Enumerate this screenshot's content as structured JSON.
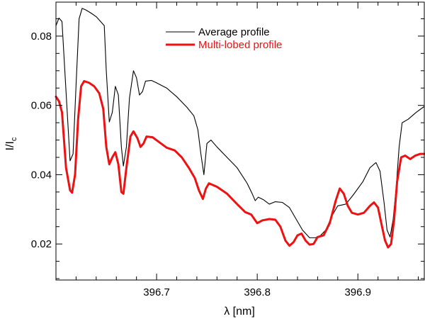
{
  "chart_data": {
    "type": "line",
    "title": "",
    "xlabel": "λ [nm]",
    "ylabel": {
      "main": "I/I",
      "subscript": "c"
    },
    "xlim": [
      396.6,
      396.966
    ],
    "ylim": [
      0.0096,
      0.0898
    ],
    "x_ticks": [
      {
        "value": 396.7,
        "label": "396.7"
      },
      {
        "value": 396.8,
        "label": "396.8"
      },
      {
        "value": 396.9,
        "label": "396.9"
      }
    ],
    "y_ticks": [
      {
        "value": 0.02,
        "label": "0.02"
      },
      {
        "value": 0.04,
        "label": "0.04"
      },
      {
        "value": 0.06,
        "label": "0.06"
      },
      {
        "value": 0.08,
        "label": "0.08"
      }
    ],
    "grid": false,
    "legend_position": "top-center",
    "series": [
      {
        "name": "Average profile",
        "color": "#000000",
        "stroke": "thin",
        "points": [
          [
            396.6,
            0.083
          ],
          [
            396.603,
            0.0852
          ],
          [
            396.606,
            0.0842
          ],
          [
            396.61,
            0.064
          ],
          [
            396.614,
            0.044
          ],
          [
            396.617,
            0.046
          ],
          [
            396.62,
            0.066
          ],
          [
            396.623,
            0.085
          ],
          [
            396.626,
            0.088
          ],
          [
            396.63,
            0.0875
          ],
          [
            396.635,
            0.0866
          ],
          [
            396.64,
            0.0856
          ],
          [
            396.645,
            0.084
          ],
          [
            396.648,
            0.083
          ],
          [
            396.65,
            0.07
          ],
          [
            396.653,
            0.0552
          ],
          [
            396.656,
            0.058
          ],
          [
            396.659,
            0.0655
          ],
          [
            396.662,
            0.063
          ],
          [
            396.665,
            0.048
          ],
          [
            396.667,
            0.0425
          ],
          [
            396.67,
            0.048
          ],
          [
            396.673,
            0.062
          ],
          [
            396.677,
            0.07
          ],
          [
            396.68,
            0.068
          ],
          [
            396.683,
            0.063
          ],
          [
            396.686,
            0.064
          ],
          [
            396.689,
            0.067
          ],
          [
            396.695,
            0.0672
          ],
          [
            396.7,
            0.0665
          ],
          [
            396.71,
            0.065
          ],
          [
            396.72,
            0.0625
          ],
          [
            396.73,
            0.0595
          ],
          [
            396.737,
            0.057
          ],
          [
            396.741,
            0.053
          ],
          [
            396.744,
            0.046
          ],
          [
            396.747,
            0.04
          ],
          [
            396.75,
            0.049
          ],
          [
            396.754,
            0.05
          ],
          [
            396.76,
            0.048
          ],
          [
            396.77,
            0.045
          ],
          [
            396.78,
            0.042
          ],
          [
            396.79,
            0.0375
          ],
          [
            396.795,
            0.0345
          ],
          [
            396.798,
            0.0325
          ],
          [
            396.801,
            0.0335
          ],
          [
            396.806,
            0.0328
          ],
          [
            396.812,
            0.0315
          ],
          [
            396.818,
            0.0322
          ],
          [
            396.825,
            0.032
          ],
          [
            396.832,
            0.0305
          ],
          [
            396.838,
            0.0275
          ],
          [
            396.845,
            0.024
          ],
          [
            396.852,
            0.0218
          ],
          [
            396.858,
            0.0218
          ],
          [
            396.863,
            0.0225
          ],
          [
            396.868,
            0.024
          ],
          [
            396.875,
            0.0285
          ],
          [
            396.88,
            0.031
          ],
          [
            396.888,
            0.0315
          ],
          [
            396.895,
            0.034
          ],
          [
            396.905,
            0.038
          ],
          [
            396.912,
            0.042
          ],
          [
            396.918,
            0.0435
          ],
          [
            396.922,
            0.041
          ],
          [
            396.926,
            0.032
          ],
          [
            396.929,
            0.024
          ],
          [
            396.932,
            0.022
          ],
          [
            396.935,
            0.027
          ],
          [
            396.938,
            0.036
          ],
          [
            396.941,
            0.048
          ],
          [
            396.944,
            0.055
          ],
          [
            396.95,
            0.056
          ],
          [
            396.958,
            0.058
          ],
          [
            396.966,
            0.0597
          ]
        ]
      },
      {
        "name": "Multi-lobed profile",
        "color": "#ee1111",
        "stroke": "thick",
        "points": [
          [
            396.6,
            0.0625
          ],
          [
            396.603,
            0.0612
          ],
          [
            396.606,
            0.058
          ],
          [
            396.61,
            0.042
          ],
          [
            396.614,
            0.0355
          ],
          [
            396.616,
            0.0348
          ],
          [
            396.619,
            0.04
          ],
          [
            396.622,
            0.056
          ],
          [
            396.625,
            0.0655
          ],
          [
            396.628,
            0.067
          ],
          [
            396.633,
            0.0665
          ],
          [
            396.638,
            0.0655
          ],
          [
            396.643,
            0.0635
          ],
          [
            396.647,
            0.059
          ],
          [
            396.65,
            0.048
          ],
          [
            396.653,
            0.043
          ],
          [
            396.656,
            0.045
          ],
          [
            396.659,
            0.0465
          ],
          [
            396.662,
            0.043
          ],
          [
            396.665,
            0.035
          ],
          [
            396.667,
            0.0345
          ],
          [
            396.67,
            0.042
          ],
          [
            396.674,
            0.051
          ],
          [
            396.677,
            0.0525
          ],
          [
            396.681,
            0.0505
          ],
          [
            396.684,
            0.048
          ],
          [
            396.687,
            0.049
          ],
          [
            396.69,
            0.051
          ],
          [
            396.696,
            0.0508
          ],
          [
            396.702,
            0.0495
          ],
          [
            396.71,
            0.0478
          ],
          [
            396.718,
            0.047
          ],
          [
            396.725,
            0.045
          ],
          [
            396.732,
            0.042
          ],
          [
            396.738,
            0.039
          ],
          [
            396.742,
            0.0355
          ],
          [
            396.746,
            0.033
          ],
          [
            396.749,
            0.036
          ],
          [
            396.752,
            0.0375
          ],
          [
            396.76,
            0.0365
          ],
          [
            396.77,
            0.0345
          ],
          [
            396.78,
            0.0315
          ],
          [
            396.788,
            0.0292
          ],
          [
            396.794,
            0.0285
          ],
          [
            396.8,
            0.026
          ],
          [
            396.805,
            0.0268
          ],
          [
            396.812,
            0.0272
          ],
          [
            396.818,
            0.027
          ],
          [
            396.823,
            0.025
          ],
          [
            396.828,
            0.021
          ],
          [
            396.832,
            0.0195
          ],
          [
            396.836,
            0.0205
          ],
          [
            396.84,
            0.0225
          ],
          [
            396.844,
            0.023
          ],
          [
            396.848,
            0.021
          ],
          [
            396.852,
            0.0198
          ],
          [
            396.856,
            0.02
          ],
          [
            396.86,
            0.022
          ],
          [
            396.866,
            0.0225
          ],
          [
            396.872,
            0.026
          ],
          [
            396.878,
            0.0325
          ],
          [
            396.882,
            0.036
          ],
          [
            396.886,
            0.0345
          ],
          [
            396.89,
            0.031
          ],
          [
            396.894,
            0.029
          ],
          [
            396.9,
            0.0285
          ],
          [
            396.906,
            0.029
          ],
          [
            396.912,
            0.031
          ],
          [
            396.916,
            0.032
          ],
          [
            396.92,
            0.0305
          ],
          [
            396.924,
            0.025
          ],
          [
            396.927,
            0.021
          ],
          [
            396.93,
            0.019
          ],
          [
            396.933,
            0.02
          ],
          [
            396.936,
            0.027
          ],
          [
            396.939,
            0.038
          ],
          [
            396.943,
            0.045
          ],
          [
            396.947,
            0.0455
          ],
          [
            396.952,
            0.0445
          ],
          [
            396.957,
            0.0455
          ],
          [
            396.962,
            0.046
          ],
          [
            396.966,
            0.046
          ]
        ]
      }
    ]
  }
}
